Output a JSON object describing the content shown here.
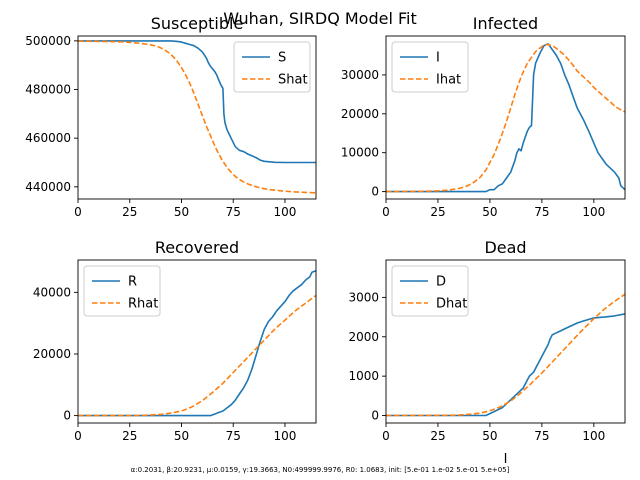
{
  "figure": {
    "suptitle": "Wuhan, SIRDQ Model Fit",
    "footnote": "α:0.2031, β:20.9231, μ:0.0159, γ:19.3663, N0:499999.9976, R0: 1.0683, init: [5.e-01 1.e-02 5.e-01 5.e+05]",
    "colors": {
      "actual": "#1f77b4",
      "fit": "#ff7f0e"
    }
  },
  "chart_data": [
    {
      "type": "line",
      "title": "Susceptible",
      "xlabel": "",
      "ylabel": "",
      "xlim": [
        0,
        115
      ],
      "ylim": [
        435000,
        502000
      ],
      "xticks": [
        0,
        25,
        50,
        75,
        100
      ],
      "yticks": [
        440000,
        460000,
        480000,
        500000
      ],
      "legend": "upper right",
      "series": [
        {
          "name": "S",
          "style": "solid",
          "x": [
            0,
            45,
            48,
            50,
            52,
            54,
            56,
            58,
            60,
            62,
            63,
            64,
            65,
            66,
            67,
            68,
            69,
            70,
            70.5,
            71,
            72,
            74,
            76,
            78,
            80,
            82,
            84,
            86,
            88,
            90,
            95,
            100,
            105,
            110,
            115
          ],
          "y": [
            500000,
            500000,
            499800,
            499500,
            499000,
            498500,
            498000,
            497000,
            495500,
            493000,
            491000,
            489500,
            488500,
            487500,
            486000,
            484000,
            482000,
            480500,
            470000,
            466500,
            463500,
            460000,
            456500,
            455000,
            454500,
            453500,
            452800,
            452000,
            451000,
            450500,
            450100,
            450000,
            450000,
            450000,
            450000
          ]
        },
        {
          "name": "Shat",
          "style": "dashed",
          "x": [
            0,
            10,
            20,
            25,
            30,
            35,
            38,
            40,
            42,
            44,
            46,
            48,
            50,
            52,
            54,
            56,
            58,
            60,
            62,
            64,
            66,
            68,
            70,
            72,
            74,
            76,
            78,
            80,
            82,
            85,
            88,
            90,
            95,
            100,
            105,
            110,
            115
          ],
          "y": [
            499900,
            499800,
            499600,
            499400,
            499000,
            498400,
            497800,
            497100,
            496200,
            495000,
            493500,
            491500,
            489000,
            486000,
            482500,
            478500,
            474000,
            469500,
            465000,
            461000,
            457000,
            453500,
            450500,
            448000,
            446000,
            444300,
            443000,
            442000,
            441200,
            440300,
            439600,
            439200,
            438600,
            438200,
            437900,
            437700,
            437500
          ]
        }
      ]
    },
    {
      "type": "line",
      "title": "Infected",
      "xlabel": "",
      "ylabel": "",
      "xlim": [
        0,
        115
      ],
      "ylim": [
        -1900,
        40000
      ],
      "xticks": [
        0,
        25,
        50,
        75,
        100
      ],
      "yticks": [
        0,
        10000,
        20000,
        30000
      ],
      "legend": "upper left",
      "series": [
        {
          "name": "I",
          "style": "solid",
          "x": [
            0,
            48,
            50,
            52,
            54,
            56,
            58,
            60,
            61,
            62,
            63,
            64,
            65,
            66,
            67,
            68,
            69,
            70,
            71,
            72,
            74,
            76,
            78,
            80,
            82,
            84,
            86,
            88,
            90,
            92,
            95,
            98,
            100,
            102,
            104,
            106,
            108,
            110,
            112,
            113,
            115
          ],
          "y": [
            0,
            0,
            500,
            500,
            1500,
            2000,
            3500,
            5000,
            6500,
            8000,
            10000,
            11000,
            10500,
            12500,
            14000,
            15500,
            16500,
            17000,
            30000,
            33000,
            35500,
            37500,
            38000,
            36500,
            35000,
            33000,
            30000,
            27500,
            24500,
            21500,
            18500,
            15000,
            12500,
            10000,
            8500,
            7000,
            6000,
            5000,
            3500,
            1500,
            500
          ]
        },
        {
          "name": "Ihat",
          "style": "dashed",
          "x": [
            0,
            20,
            25,
            30,
            35,
            38,
            40,
            42,
            45,
            48,
            50,
            52,
            55,
            58,
            60,
            62,
            65,
            68,
            70,
            72,
            75,
            77,
            78,
            80,
            82,
            85,
            88,
            90,
            92,
            95,
            98,
            100,
            102,
            105,
            108,
            110,
            112,
            115
          ],
          "y": [
            0,
            100,
            200,
            400,
            800,
            1200,
            1700,
            2300,
            3500,
            5500,
            7500,
            9500,
            13500,
            18000,
            21500,
            25000,
            29500,
            33000,
            34500,
            36000,
            37300,
            37800,
            37800,
            37500,
            36800,
            35500,
            33800,
            32500,
            31000,
            29500,
            28000,
            26800,
            25800,
            24400,
            23000,
            22000,
            21300,
            20500
          ]
        }
      ]
    },
    {
      "type": "line",
      "title": "Recovered",
      "xlabel": "",
      "ylabel": "",
      "xlim": [
        0,
        115
      ],
      "ylim": [
        -2400,
        50500
      ],
      "xticks": [
        0,
        25,
        50,
        75,
        100
      ],
      "yticks": [
        0,
        20000,
        40000
      ],
      "legend": "upper left",
      "series": [
        {
          "name": "R",
          "style": "solid",
          "x": [
            0,
            64,
            66,
            68,
            70,
            72,
            74,
            76,
            78,
            80,
            82,
            84,
            86,
            88,
            90,
            92,
            94,
            96,
            98,
            100,
            102,
            104,
            106,
            108,
            110,
            112,
            113,
            115
          ],
          "y": [
            0,
            0,
            500,
            1000,
            1500,
            2500,
            3500,
            5000,
            7000,
            9000,
            11500,
            15000,
            19500,
            24000,
            28000,
            30500,
            32000,
            34000,
            35500,
            37000,
            39000,
            40500,
            41500,
            42500,
            44000,
            45000,
            46500,
            47000
          ]
        },
        {
          "name": "Rhat",
          "style": "dashed",
          "x": [
            0,
            30,
            35,
            40,
            45,
            50,
            55,
            60,
            65,
            70,
            75,
            80,
            85,
            90,
            95,
            100,
            105,
            110,
            115
          ],
          "y": [
            0,
            50,
            200,
            400,
            800,
            1500,
            2800,
            4800,
            7500,
            10500,
            14000,
            17500,
            21000,
            24500,
            28000,
            31000,
            34000,
            36500,
            39000
          ]
        }
      ]
    },
    {
      "type": "line",
      "title": "Dead",
      "xlabel": "I",
      "ylabel": "",
      "xlim": [
        0,
        115
      ],
      "ylim": [
        -190,
        3950
      ],
      "xticks": [
        0,
        25,
        50,
        75,
        100
      ],
      "yticks": [
        0,
        1000,
        2000,
        3000
      ],
      "legend": "upper left",
      "series": [
        {
          "name": "D",
          "style": "solid",
          "x": [
            0,
            48,
            50,
            52,
            54,
            56,
            58,
            60,
            62,
            64,
            66,
            68,
            69,
            70,
            71,
            72,
            74,
            76,
            78,
            79,
            80,
            82,
            84,
            86,
            88,
            90,
            92,
            95,
            98,
            100,
            105,
            110,
            115
          ],
          "y": [
            0,
            0,
            50,
            100,
            150,
            200,
            300,
            400,
            500,
            600,
            700,
            900,
            1000,
            1050,
            1100,
            1200,
            1400,
            1600,
            1800,
            1950,
            2050,
            2100,
            2150,
            2200,
            2250,
            2300,
            2350,
            2400,
            2450,
            2480,
            2500,
            2530,
            2580
          ]
        },
        {
          "name": "Dhat",
          "style": "dashed",
          "x": [
            0,
            30,
            35,
            40,
            45,
            50,
            55,
            60,
            65,
            70,
            75,
            80,
            85,
            90,
            95,
            100,
            105,
            110,
            115
          ],
          "y": [
            0,
            5,
            10,
            30,
            60,
            120,
            220,
            370,
            580,
            820,
            1080,
            1360,
            1640,
            1920,
            2200,
            2460,
            2700,
            2900,
            3080
          ]
        }
      ]
    }
  ]
}
